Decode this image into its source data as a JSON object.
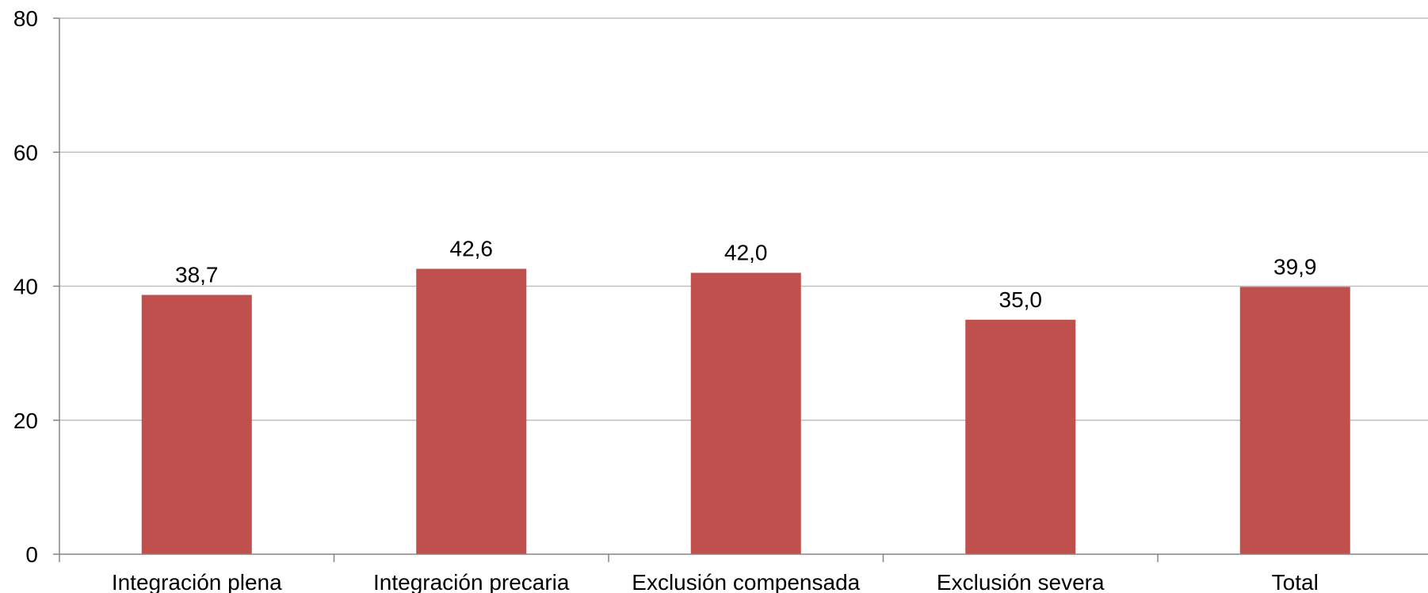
{
  "chart_data": {
    "type": "bar",
    "categories": [
      "Integración plena",
      "Integración precaria",
      "Exclusión compensada",
      "Exclusión severa",
      "Total"
    ],
    "values": [
      38.7,
      42.6,
      42.0,
      35.0,
      39.9
    ],
    "value_labels": [
      "38,7",
      "42,6",
      "42,0",
      "35,0",
      "39,9"
    ],
    "ylim": [
      0,
      80
    ],
    "yticks": [
      0,
      20,
      40,
      60,
      80
    ],
    "ytick_labels": [
      "0",
      "20",
      "40",
      "60",
      "80"
    ],
    "grid": true,
    "legend": "none",
    "title": "",
    "xlabel": "",
    "ylabel": "",
    "colors": {
      "bar": "#C0504D",
      "grid": "#BFBFBF",
      "axis": "#868686"
    }
  }
}
